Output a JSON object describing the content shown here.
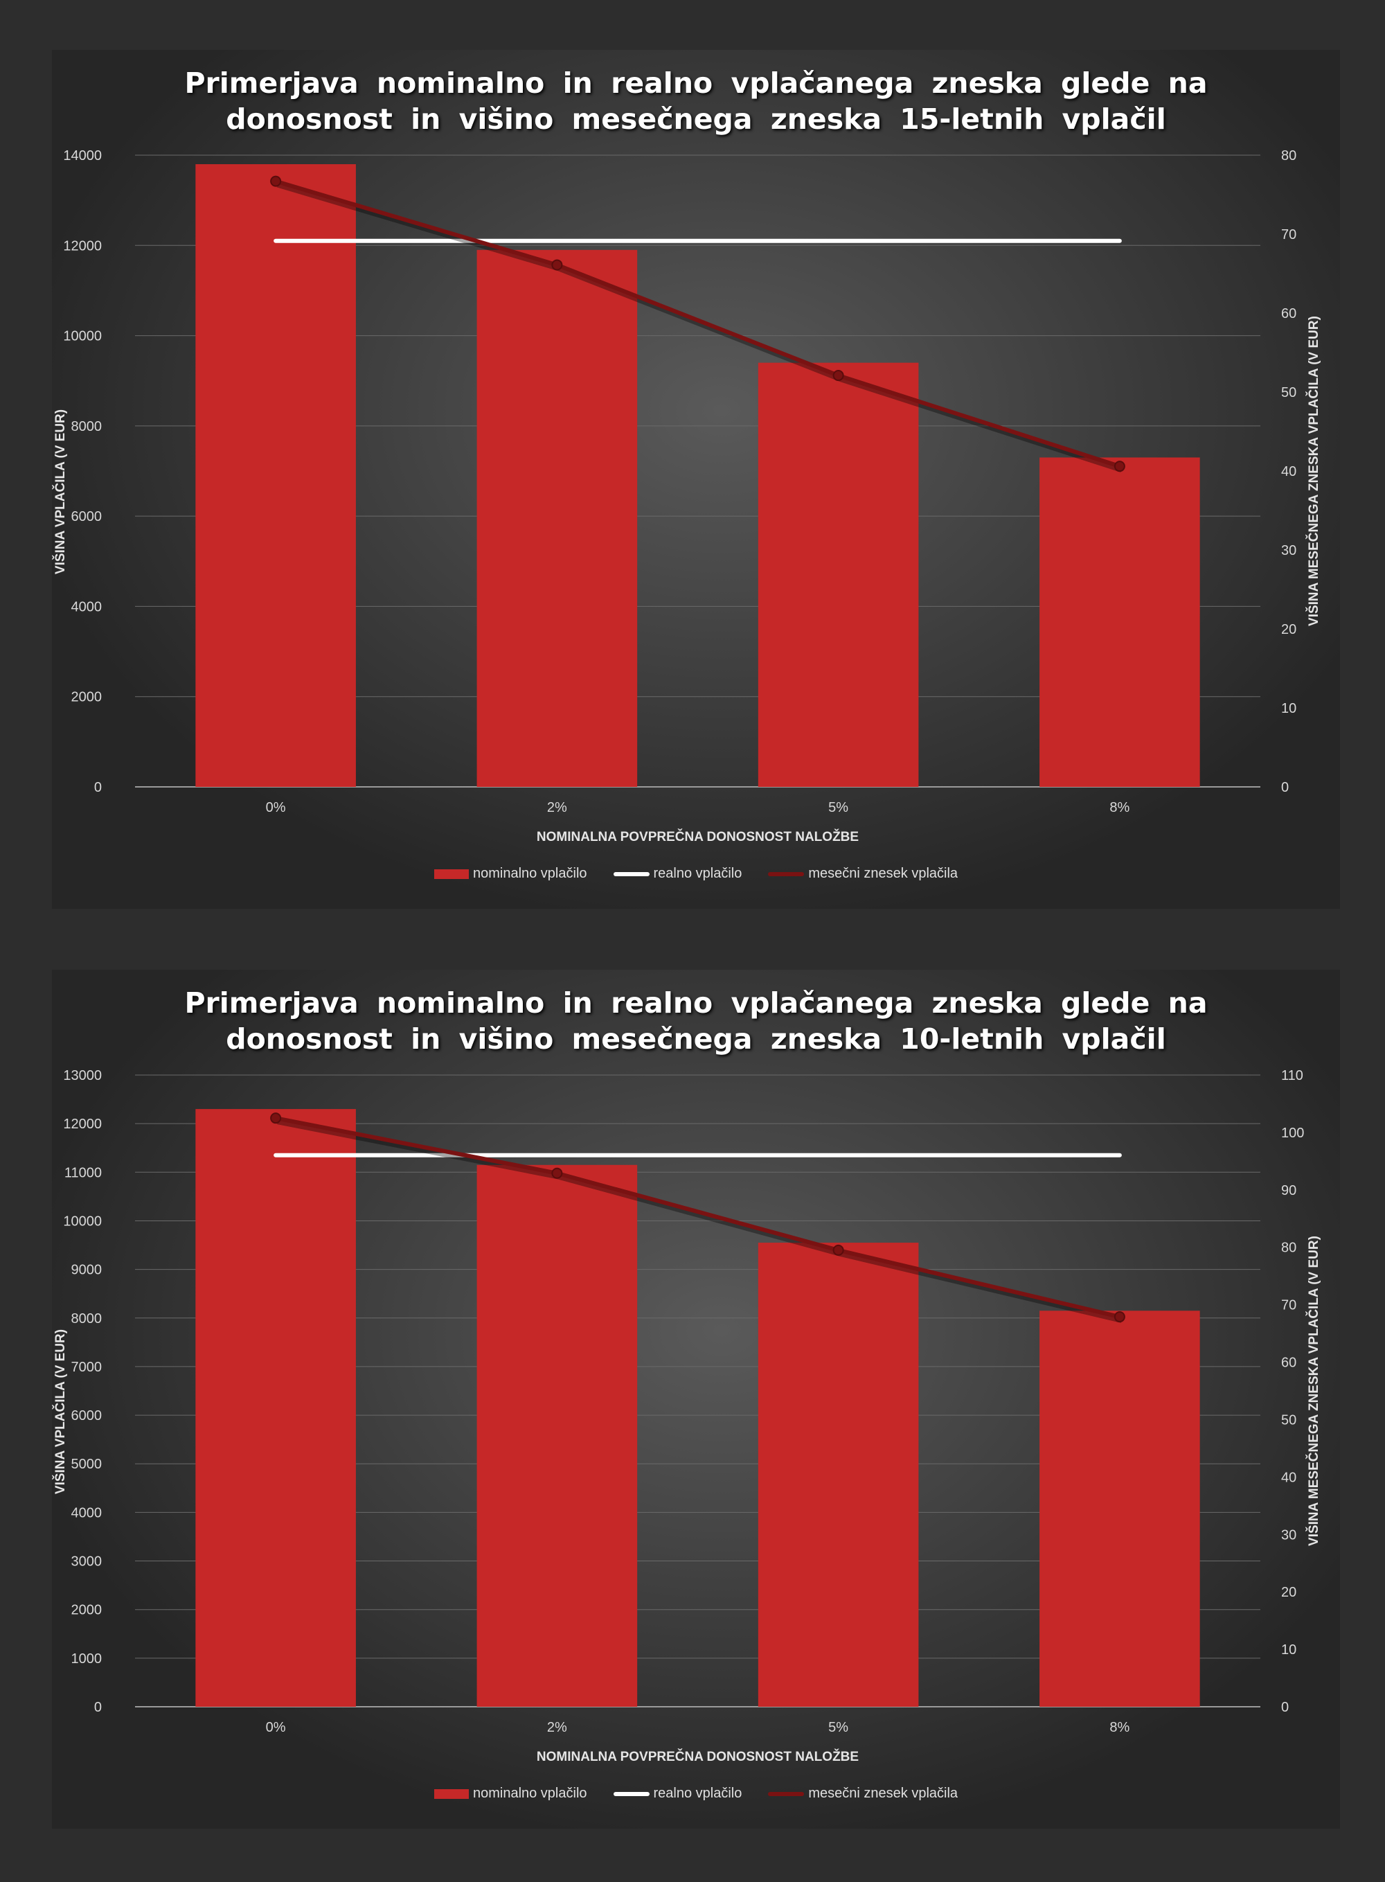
{
  "chart_data": [
    {
      "type": "bar",
      "title_line1": "Primerjava nominalno in realno vplačanega zneska glede na",
      "title_line2": "donosnost in višino mesečnega zneska 15-letnih vplačil",
      "xlabel": "NOMINALNA POVPREČNA DONOSNOST NALOŽBE",
      "ylabel": "VIŠINA VPLAČILA (V EUR)",
      "y2label": "VIŠINA MESEČNEGA ZNESKA VPLAČILA (V EUR)",
      "categories": [
        "0%",
        "2%",
        "5%",
        "8%"
      ],
      "ylim": [
        0,
        14000
      ],
      "yticks": [
        0,
        2000,
        4000,
        6000,
        8000,
        10000,
        12000,
        14000
      ],
      "y2lim": [
        0,
        80
      ],
      "y2ticks": [
        0,
        10,
        20,
        30,
        40,
        50,
        60,
        70,
        80
      ],
      "grid": true,
      "legend_position": "bottom",
      "series": [
        {
          "name": "nominalno vplačilo",
          "kind": "bar",
          "axis": "left",
          "color": "#c62828",
          "values": [
            13800,
            11900,
            9400,
            7300
          ]
        },
        {
          "name": "realno vplačilo",
          "kind": "line",
          "axis": "left",
          "color": "#ffffff",
          "values": [
            12100,
            12100,
            12100,
            12100
          ]
        },
        {
          "name": "mesečni znesek vplačila",
          "kind": "line",
          "axis": "right",
          "color": "#7a1212",
          "values": [
            76.7,
            66.1,
            52.1,
            40.6
          ]
        }
      ]
    },
    {
      "type": "bar",
      "title_line1": "Primerjava nominalno in realno vplačanega zneska glede na",
      "title_line2": "donosnost in višino mesečnega zneska 10-letnih vplačil",
      "xlabel": "NOMINALNA POVPREČNA DONOSNOST NALOŽBE",
      "ylabel": "VIŠINA VPLAČILA (V EUR)",
      "y2label": "VIŠINA MESEČNEGA ZNESKA VPLAČILA (V EUR)",
      "categories": [
        "0%",
        "2%",
        "5%",
        "8%"
      ],
      "ylim": [
        0,
        13000
      ],
      "yticks": [
        0,
        1000,
        2000,
        3000,
        4000,
        5000,
        6000,
        7000,
        8000,
        9000,
        10000,
        11000,
        12000,
        13000
      ],
      "y2lim": [
        0,
        110
      ],
      "y2ticks": [
        0,
        10,
        20,
        30,
        40,
        50,
        60,
        70,
        80,
        90,
        100,
        110
      ],
      "grid": true,
      "legend_position": "bottom",
      "series": [
        {
          "name": "nominalno vplačilo",
          "kind": "bar",
          "axis": "left",
          "color": "#c62828",
          "values": [
            12300,
            11150,
            9550,
            8150
          ]
        },
        {
          "name": "realno vplačilo",
          "kind": "line",
          "axis": "left",
          "color": "#ffffff",
          "values": [
            11350,
            11350,
            11350,
            11350
          ]
        },
        {
          "name": "mesečni znesek vplačila",
          "kind": "line",
          "axis": "right",
          "color": "#7a1212",
          "values": [
            102.5,
            92.9,
            79.5,
            67.9
          ]
        }
      ]
    }
  ]
}
